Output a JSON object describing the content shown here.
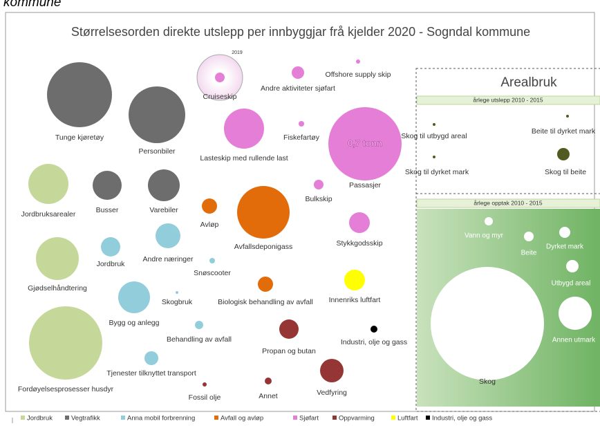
{
  "header": {
    "fragment": "kommune",
    "title": "Størrelsesorden direkte utslepp per innbyggjar frå kjelder 2020 - Sogndal kommune"
  },
  "bubbles": [
    {
      "label": "Tunge kjøretøy",
      "color": "#6d6d6d"
    },
    {
      "label": "Personbiler",
      "color": "#6d6d6d"
    },
    {
      "label": "Busser",
      "color": "#6d6d6d"
    },
    {
      "label": "Varebiler",
      "color": "#6d6d6d"
    },
    {
      "label": "Cruiseskip",
      "color": "#e57ed6",
      "note": "2019"
    },
    {
      "label": "Andre aktiviteter sjøfart",
      "color": "#e57ed6"
    },
    {
      "label": "Offshore supply skip",
      "color": "#e57ed6"
    },
    {
      "label": "Lasteskip med rullende last",
      "color": "#e57ed6"
    },
    {
      "label": "Fiskefartøy",
      "color": "#e57ed6"
    },
    {
      "label": "Passasjer",
      "color": "#e57ed6",
      "inner_label": "0,7 tonn"
    },
    {
      "label": "Bulkskip",
      "color": "#e57ed6"
    },
    {
      "label": "Jordbruksarealer",
      "color": "#c5d89a"
    },
    {
      "label": "Avløp",
      "color": "#e36c0a"
    },
    {
      "label": "Avfallsdeponigass",
      "color": "#e36c0a"
    },
    {
      "label": "Stykkgodsskip",
      "color": "#e57ed6"
    },
    {
      "label": "Andre næringer",
      "color": "#92cddc"
    },
    {
      "label": "Jordbruk",
      "color": "#92cddc"
    },
    {
      "label": "Snøscooter",
      "color": "#92cddc"
    },
    {
      "label": "Gjødselhåndtering",
      "color": "#c5d89a"
    },
    {
      "label": "Skogbruk",
      "color": "#92cddc"
    },
    {
      "label": "Bygg og anlegg",
      "color": "#92cddc"
    },
    {
      "label": "Biologisk behandling av avfall",
      "color": "#e36c0a"
    },
    {
      "label": "Innenriks luftfart",
      "color": "#ffff00"
    },
    {
      "label": "Behandling av avfall",
      "color": "#92cddc"
    },
    {
      "label": "Propan og butan",
      "color": "#963634"
    },
    {
      "label": "Industri, olje og gass",
      "color": "#000000"
    },
    {
      "label": "Fordøyelsesprosesser husdyr",
      "color": "#c5d89a"
    },
    {
      "label": "Tjenester tilknyttet transport",
      "color": "#92cddc"
    },
    {
      "label": "Fossil olje",
      "color": "#963634"
    },
    {
      "label": "Annet",
      "color": "#963634"
    },
    {
      "label": "Vedfyring",
      "color": "#963634"
    }
  ],
  "arealbruk": {
    "title": "Arealbruk",
    "emissions": {
      "band": "årlege utslepp 2010 - 2015",
      "items": [
        {
          "label": "Skog til utbygd areal",
          "color": "#4f5b20"
        },
        {
          "label": "Beite til dyrket mark",
          "color": "#4f5b20"
        },
        {
          "label": "Skog til dyrket mark",
          "color": "#4f5b20"
        },
        {
          "label": "Skog til beite",
          "color": "#4f5b20"
        }
      ]
    },
    "uptake": {
      "band": "årlege opptak 2010 - 2015",
      "items": [
        {
          "label": "Vann og myr"
        },
        {
          "label": "Beite"
        },
        {
          "label": "Dyrket mark"
        },
        {
          "label": "Utbygd areal"
        },
        {
          "label": "Annen utmark"
        },
        {
          "label": "Skog"
        }
      ]
    }
  },
  "legend": [
    {
      "name": "Jordbruk",
      "color": "#c5d89a"
    },
    {
      "name": "Vegtrafikk",
      "color": "#6d6d6d"
    },
    {
      "name": "Anna mobil forbrenning",
      "color": "#92cddc"
    },
    {
      "name": "Avfall og avløp",
      "color": "#e36c0a"
    },
    {
      "name": "Sjøfart",
      "color": "#e57ed6"
    },
    {
      "name": "Oppvarming",
      "color": "#963634"
    },
    {
      "name": "Luftfart",
      "color": "#ffff00"
    },
    {
      "name": "Industri, olje og gass",
      "color": "#000000"
    }
  ]
}
